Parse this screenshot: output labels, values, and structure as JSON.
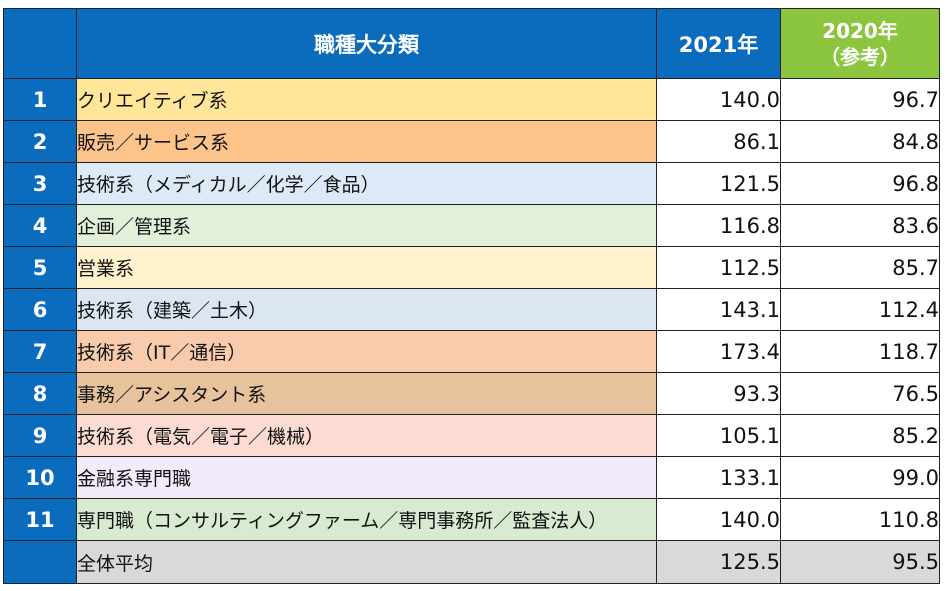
{
  "header": {
    "category": "職種大分類",
    "year2021": "2021年",
    "year2020_line1": "2020年",
    "year2020_line2": "（参考）"
  },
  "rows": [
    {
      "no": "1",
      "name": "クリエイティブ系",
      "y2021": "140.0",
      "y2020": "96.7",
      "color": "#ffe699"
    },
    {
      "no": "2",
      "name": "販売／サービス系",
      "y2021": "86.1",
      "y2020": "84.8",
      "color": "#fcc48b"
    },
    {
      "no": "3",
      "name": "技術系（メディカル／化学／食品）",
      "y2021": "121.5",
      "y2020": "96.8",
      "color": "#dde9f6"
    },
    {
      "no": "4",
      "name": "企画／管理系",
      "y2021": "116.8",
      "y2020": "83.6",
      "color": "#e2efd9"
    },
    {
      "no": "5",
      "name": "営業系",
      "y2021": "112.5",
      "y2020": "85.7",
      "color": "#fff2cc"
    },
    {
      "no": "6",
      "name": "技術系（建築／土木）",
      "y2021": "143.1",
      "y2020": "112.4",
      "color": "#dce6f2"
    },
    {
      "no": "7",
      "name": "技術系（IT／通信）",
      "y2021": "173.4",
      "y2020": "118.7",
      "color": "#f8cbad"
    },
    {
      "no": "8",
      "name": "事務／アシスタント系",
      "y2021": "93.3",
      "y2020": "76.5",
      "color": "#e6c39d"
    },
    {
      "no": "9",
      "name": "技術系（電気／電子／機械）",
      "y2021": "105.1",
      "y2020": "85.2",
      "color": "#fcdcd2"
    },
    {
      "no": "10",
      "name": "金融系専門職",
      "y2021": "133.1",
      "y2020": "99.0",
      "color": "#f3eafb"
    },
    {
      "no": "11",
      "name": "専門職（コンサルティングファーム／専門事務所／監査法人）",
      "y2021": "140.0",
      "y2020": "110.8",
      "color": "#d8ebd0"
    }
  ],
  "average": {
    "name": "全体平均",
    "y2021": "125.5",
    "y2020": "95.5",
    "color": "#d9d9d9"
  }
}
